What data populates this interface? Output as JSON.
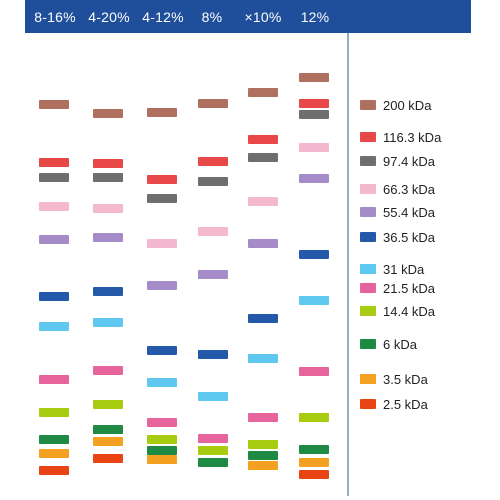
{
  "lanes": [
    {
      "label": "8-16%"
    },
    {
      "label": "4-20%"
    },
    {
      "label": "4-12%"
    },
    {
      "label": "8%"
    },
    {
      "label": "×10%"
    },
    {
      "label": "12%"
    }
  ],
  "markers": [
    {
      "label": "200 kDa",
      "color": "#b07060"
    },
    {
      "label": "116.3 kDa",
      "color": "#e84848"
    },
    {
      "label": "97.4 kDa",
      "color": "#6e6e6e"
    },
    {
      "label": "66.3 kDa",
      "color": "#f4b8cf"
    },
    {
      "label": "55.4 kDa",
      "color": "#a58cc8"
    },
    {
      "label": "36.5 kDa",
      "color": "#2458a8"
    },
    {
      "label": "31 kDa",
      "color": "#5ec8ee"
    },
    {
      "label": "21.5 kDa",
      "color": "#e8649c"
    },
    {
      "label": "14.4 kDa",
      "color": "#a8cc10"
    },
    {
      "label": "6 kDa",
      "color": "#1e8a44"
    },
    {
      "label": "3.5 kDa",
      "color": "#f4a020"
    },
    {
      "label": "2.5 kDa",
      "color": "#e84414"
    }
  ],
  "theme": {
    "header_bg": "#1f4e9a",
    "header_text": "#ffffff",
    "separator": "#9aabc9"
  }
}
